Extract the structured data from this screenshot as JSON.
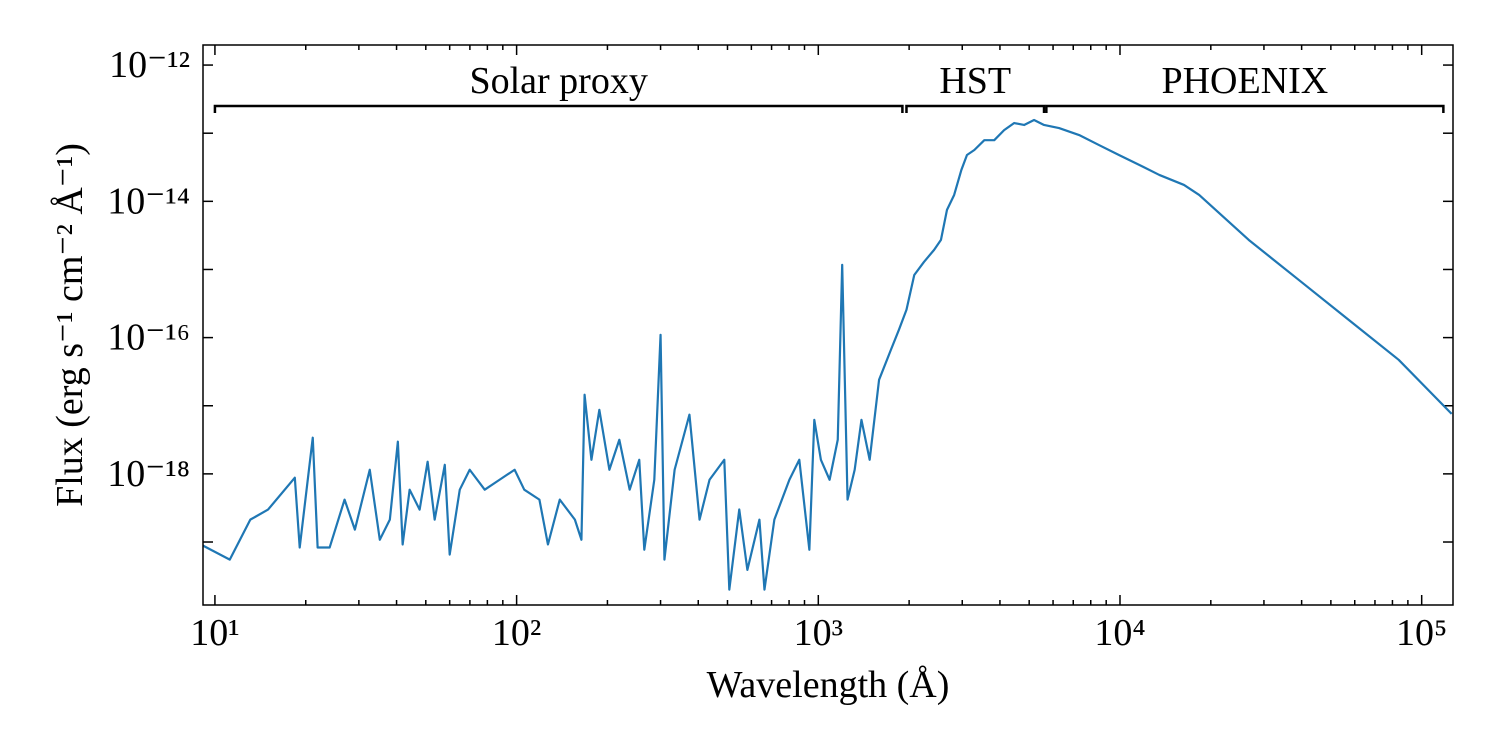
{
  "chart_data": {
    "type": "line",
    "xlabel": "Wavelength (Å)",
    "ylabel": "Flux (erg s⁻¹ cm⁻² Å⁻¹)",
    "xscale": "log",
    "yscale": "log",
    "xlim": [
      9.13,
      127000
    ],
    "ylim": [
      1.19e-20,
      1.97e-12
    ],
    "xticks": [
      {
        "value": 10,
        "label": "10¹"
      },
      {
        "value": 100,
        "label": "10²"
      },
      {
        "value": 1000,
        "label": "10³"
      },
      {
        "value": 10000,
        "label": "10⁴"
      },
      {
        "value": 100000,
        "label": "10⁵"
      }
    ],
    "yticks": [
      {
        "value": 1e-12,
        "label": "10⁻¹²"
      },
      {
        "value": 1e-14,
        "label": "10⁻¹⁴"
      },
      {
        "value": 1e-16,
        "label": "10⁻¹⁶"
      },
      {
        "value": 1e-18,
        "label": "10⁻¹⁸"
      }
    ],
    "xminorticks": [
      20,
      30,
      40,
      50,
      60,
      70,
      80,
      90,
      200,
      300,
      400,
      500,
      600,
      700,
      800,
      900,
      2000,
      3000,
      4000,
      5000,
      6000,
      7000,
      8000,
      9000,
      20000,
      30000,
      40000,
      50000,
      60000,
      70000,
      80000,
      90000
    ],
    "yminorticks": [
      1e-13,
      1e-15,
      1e-17,
      1e-19
    ],
    "color": "#1f77b4",
    "regions": [
      {
        "label": "Solar proxy",
        "x": [
          10,
          1900
        ]
      },
      {
        "label": "HST",
        "x": [
          1960,
          5600
        ]
      },
      {
        "label": "PHOENIX",
        "x": [
          5700,
          118000
        ]
      }
    ],
    "x": [
      9.13,
      11.2,
      13.1,
      15.0,
      18.4,
      19.1,
      21.1,
      21.9,
      24.0,
      26.9,
      29.1,
      32.6,
      35.2,
      38.0,
      40.4,
      41.9,
      44.2,
      47.7,
      50.7,
      53.5,
      57.8,
      60.0,
      64.8,
      69.9,
      78.4,
      87.8,
      98.5,
      106,
      119,
      127,
      139,
      156,
      164,
      168,
      177,
      188,
      203,
      219,
      237,
      255,
      265,
      286,
      300,
      309,
      334,
      374,
      404,
      436,
      488,
      507,
      547,
      582,
      638,
      663,
      715,
      802,
      865,
      934,
      970,
      1020,
      1090,
      1160,
      1200,
      1250,
      1320,
      1390,
      1480,
      1590,
      1740,
      1850,
      1960,
      2080,
      2240,
      2420,
      2550,
      2670,
      2820,
      2980,
      3110,
      3290,
      3550,
      3830,
      4130,
      4460,
      4810,
      5190,
      5600,
      6280,
      7320,
      8520,
      9920,
      11600,
      13500,
      16300,
      18300,
      26700,
      39100,
      57300,
      83900,
      125700
    ],
    "values": [
      8.85e-20,
      5.52e-20,
      2.13e-19,
      2.99e-19,
      8.8e-19,
      8.3e-20,
      3.4e-18,
      8.3e-20,
      8.3e-20,
      4.19e-19,
      1.52e-19,
      1.15e-18,
      1.08e-19,
      2.13e-19,
      2.97e-18,
      9.2e-20,
      5.86e-19,
      2.99e-19,
      1.51e-18,
      2.13e-19,
      1.36e-18,
      6.53e-20,
      5.86e-19,
      1.15e-18,
      5.86e-19,
      8.2e-19,
      1.15e-18,
      5.86e-19,
      4.19e-19,
      9.2e-20,
      4.19e-19,
      2.13e-19,
      1.08e-19,
      1.45e-17,
      1.61e-18,
      8.7e-18,
      1.15e-18,
      3.17e-18,
      5.86e-19,
      1.61e-18,
      7.7e-20,
      8.2e-19,
      1.1e-16,
      5.52e-20,
      1.15e-18,
      7.4e-18,
      2.13e-19,
      8.2e-19,
      1.61e-18,
      2e-20,
      3e-19,
      3.9e-20,
      2.13e-19,
      2e-20,
      2.13e-19,
      8.2e-19,
      1.61e-18,
      7.7e-20,
      6.2e-18,
      1.61e-18,
      8.2e-19,
      3.17e-18,
      1.17e-15,
      4.19e-19,
      1.15e-18,
      6.2e-18,
      1.61e-18,
      2.4e-17,
      6.6e-17,
      1.3e-16,
      2.56e-16,
      8.3e-16,
      1.29e-15,
      1.94e-15,
      2.72e-15,
      7.5e-15,
      1.24e-14,
      2.89e-14,
      4.79e-14,
      5.67e-14,
      7.9e-14,
      7.9e-14,
      1.11e-13,
      1.41e-13,
      1.32e-13,
      1.56e-13,
      1.32e-13,
      1.19e-13,
      9.4e-14,
      6.7e-14,
      4.79e-14,
      3.42e-14,
      2.44e-14,
      1.74e-14,
      1.24e-14,
      2.72e-15,
      7.05e-16,
      1.82e-16,
      4.72e-17,
      7.6e-18
    ]
  }
}
